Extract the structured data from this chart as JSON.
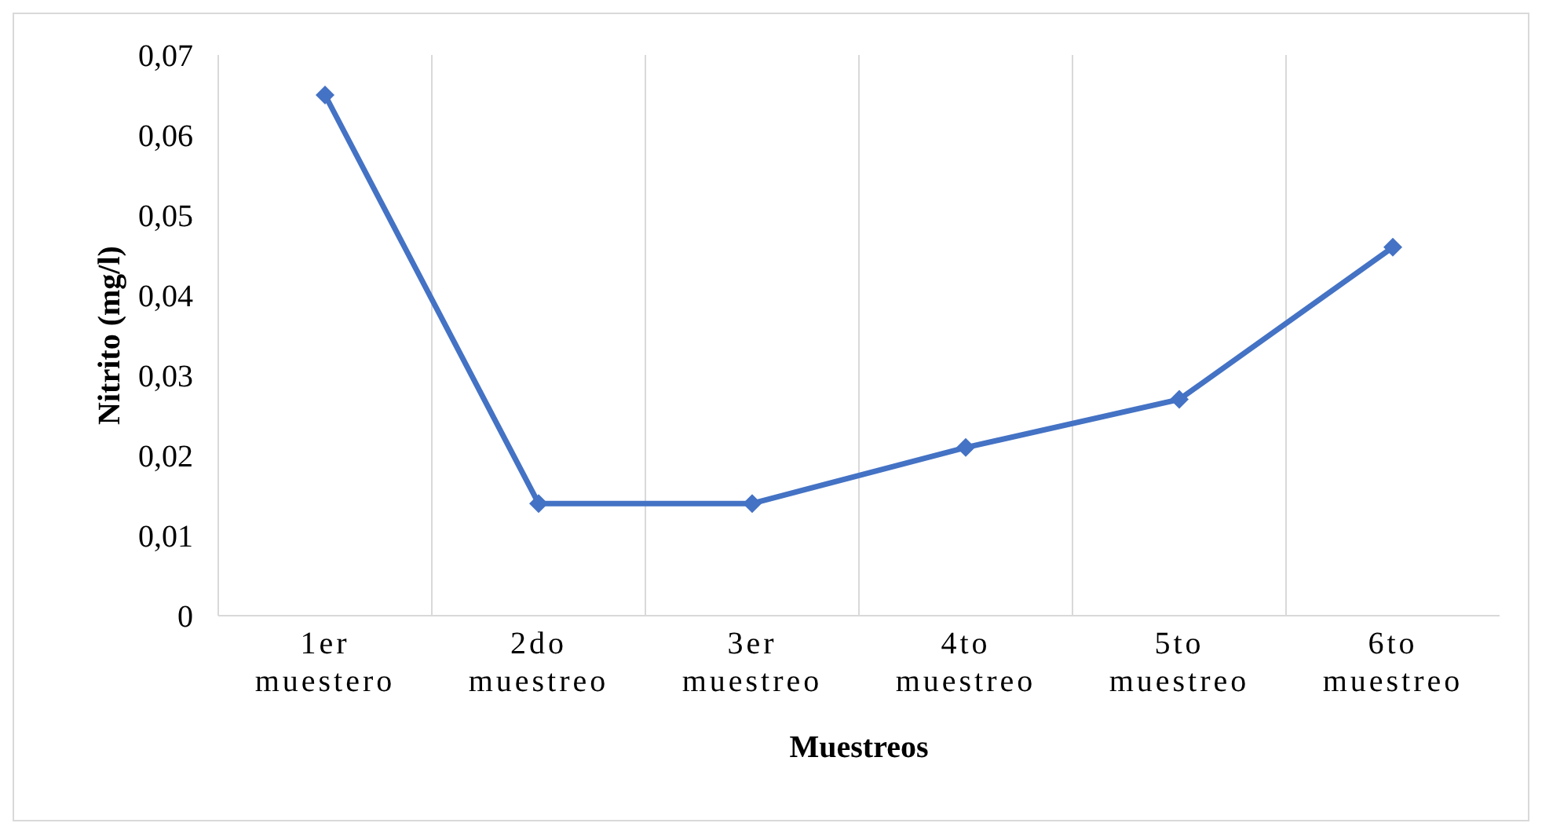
{
  "chart_data": {
    "type": "line",
    "xlabel": "Muestreos",
    "ylabel": "Nitrito (mg/l)",
    "categories": [
      "1er muestero",
      "2do muestreo",
      "3er muestreo",
      "4to muestreo",
      "5to muestreo",
      "6to muestreo"
    ],
    "series": [
      {
        "color": "#4472c4",
        "values": [
          0.065,
          0.014,
          0.014,
          0.021,
          0.027,
          0.046
        ]
      }
    ],
    "ylim": [
      0,
      0.07
    ],
    "yticks": [
      {
        "value": 0,
        "label": "0"
      },
      {
        "value": 0.01,
        "label": "0,01"
      },
      {
        "value": 0.02,
        "label": "0,02"
      },
      {
        "value": 0.03,
        "label": "0,03"
      },
      {
        "value": 0.04,
        "label": "0,04"
      },
      {
        "value": 0.05,
        "label": "0,05"
      },
      {
        "value": 0.06,
        "label": "0,06"
      },
      {
        "value": 0.07,
        "label": "0,07"
      }
    ],
    "grid": "x",
    "legend": false,
    "marker": "diamond",
    "line_style": "solid"
  }
}
